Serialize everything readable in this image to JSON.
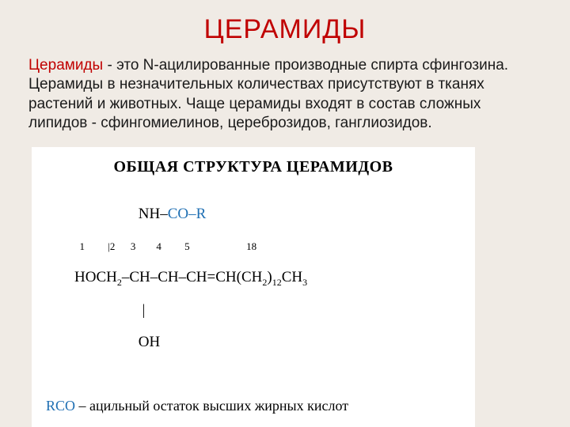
{
  "colors": {
    "slide_bg": "#f0ebe5",
    "title_color": "#c00000",
    "body_color": "#1a1a1a",
    "lead_color": "#c00000",
    "figure_bg": "#ffffff",
    "formula_black": "#000000",
    "formula_blue": "#1f6fb3"
  },
  "title": "ЦЕРАМИДЫ",
  "body": {
    "lead": "Церамиды",
    "rest": " - это N-ацилированные производные спирта сфингозина. Церамиды в незначительных количествах присутствуют в тканях растений и животных. Чаще церамиды входят в состав сложных липидов - сфингомиелинов, цереброзидов, ганглиозидов."
  },
  "figure": {
    "title": "ОБЩАЯ СТРУКТУРА ЦЕРАМИДОВ",
    "nh": "NH–",
    "co_r": "CO–R",
    "indices_left": "1        2        3        4         5",
    "index_right": "18",
    "chain_pre": "HOCH",
    "chain_mid1": "–CH–CH–CH=CH(CH",
    "chain_mid2": ")",
    "chain_end": "CH",
    "sub2": "2",
    "sub12": "12",
    "sub3": "3",
    "bar2": "|2",
    "bar_plain": "|",
    "oh": "OH",
    "caption_blue": "RCO",
    "caption_rest": " – ацильный остаток высших жирных кислот"
  }
}
